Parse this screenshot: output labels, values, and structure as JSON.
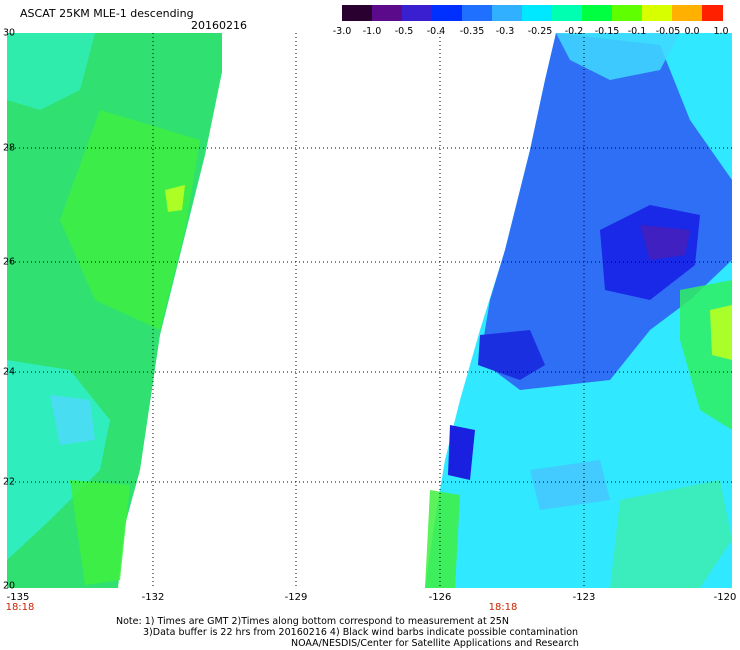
{
  "header": {
    "title": "ASCAT 25KM MLE-1 descending",
    "date": "20160216"
  },
  "colorbar": {
    "labels": [
      "-3.0",
      "-1.0",
      "-0.5",
      "-0.4",
      "-0.35",
      "-0.3",
      "-0.25",
      "-0.2",
      "-0.15",
      "-0.1",
      "-0.05",
      "0.0",
      "1.0"
    ],
    "colors": [
      "#2a0030",
      "#5a0a8a",
      "#3a1fd0",
      "#0030ff",
      "#2070ff",
      "#30b0ff",
      "#00e8ff",
      "#00ffb0",
      "#00ff40",
      "#60ff00",
      "#d8ff00",
      "#ffb000",
      "#ff2000"
    ]
  },
  "map": {
    "x_ticks": [
      "-135",
      "-132",
      "-129",
      "-126",
      "-123",
      "-120"
    ],
    "y_ticks": [
      "30",
      "28",
      "26",
      "24",
      "22",
      "20"
    ],
    "time_labels": [
      "18:18",
      "18:18"
    ]
  },
  "footer": {
    "note_line1": "Note: 1) Times are GMT 2)Times along bottom correspond to measurement at 25N",
    "note_line2": "3)Data buffer is 22 hrs from 20160216 4) Black wind barbs indicate possible contamination",
    "note_line3": "NOAA/NESDIS/Center for Satellite Applications and Research"
  }
}
